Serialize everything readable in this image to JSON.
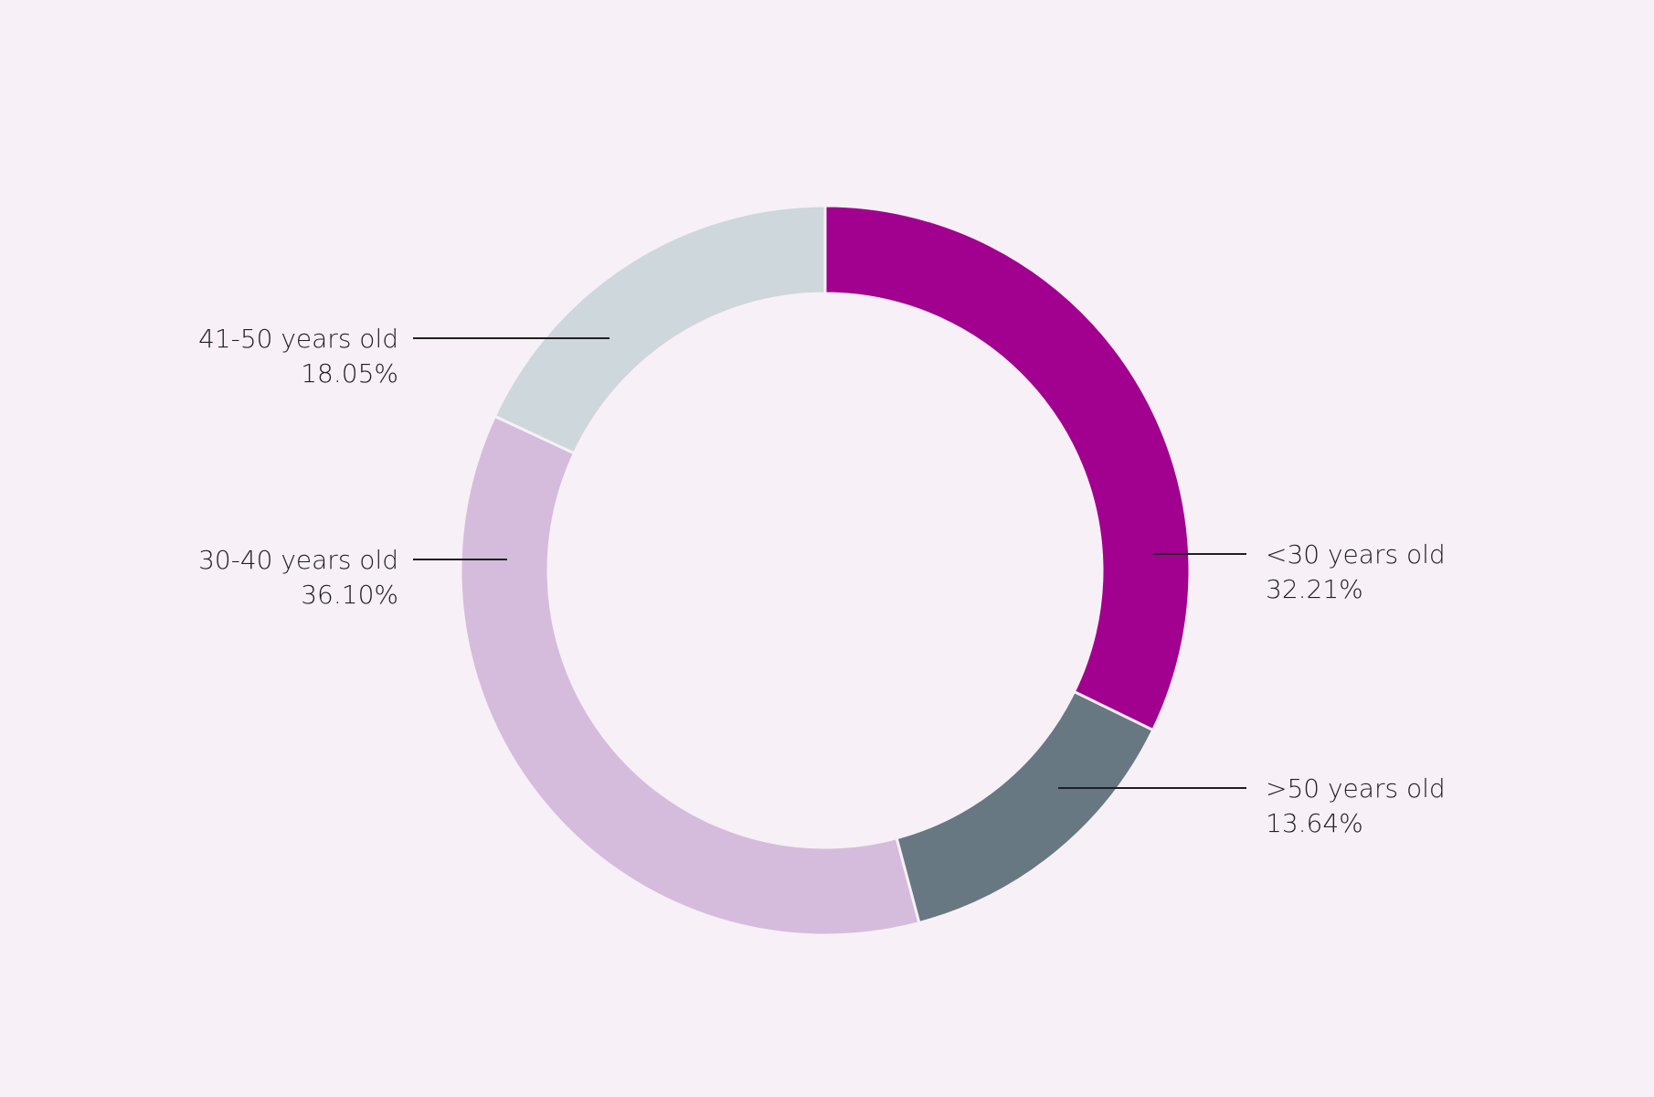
{
  "background": "#f7f0f6",
  "chart_data": {
    "type": "pie",
    "variant": "donut",
    "title": "",
    "categories": [
      "<30 years old",
      ">50 years old",
      "30-40 years old",
      "41-50 years old"
    ],
    "values": [
      32.21,
      13.64,
      36.1,
      18.05
    ],
    "value_labels": [
      "32.21%",
      "13.64%",
      "36.10%",
      "18.05%"
    ],
    "colors": [
      "#a2008f",
      "#677883",
      "#d5bcdc",
      "#cdd7dc"
    ],
    "separator_color": "#f7f0f6",
    "start_angle": "12 o'clock",
    "direction": "clockwise",
    "legend": "none",
    "labels": "outside with leader lines"
  }
}
